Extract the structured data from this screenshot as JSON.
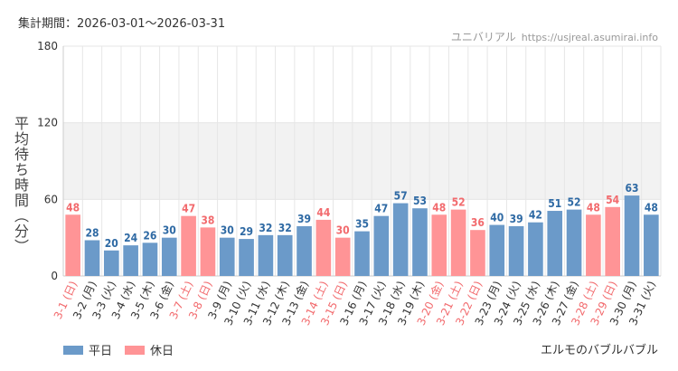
{
  "header": {
    "period_label": "集計期間：2026-03-01～2026-03-31",
    "site_name": "ユニバリアル",
    "site_url": "https://usjreal.asumirai.info"
  },
  "legend": {
    "weekday_label": "平日",
    "holiday_label": "休日"
  },
  "attraction_name": "エルモのバブルバブル",
  "colors": {
    "weekday": "#6b9ac9",
    "holiday": "#ff9496",
    "weekday_label": "#2f6aa4",
    "holiday_label": "#f26a6d",
    "band": "#f2f2f2",
    "grid": "#e6e6e6"
  },
  "chart_data": {
    "type": "bar",
    "title": "",
    "xlabel": "",
    "ylabel": "平均待ち時間（分）",
    "ylim": [
      0,
      180
    ],
    "yticks": [
      0,
      60,
      120,
      180
    ],
    "band": [
      60,
      120
    ],
    "categories": [
      "3-1 (日)",
      "3-2 (月)",
      "3-3 (火)",
      "3-4 (水)",
      "3-5 (木)",
      "3-6 (金)",
      "3-7 (土)",
      "3-8 (日)",
      "3-9 (月)",
      "3-10 (火)",
      "3-11 (水)",
      "3-12 (木)",
      "3-13 (金)",
      "3-14 (土)",
      "3-15 (日)",
      "3-16 (月)",
      "3-17 (火)",
      "3-18 (水)",
      "3-19 (木)",
      "3-20 (金)",
      "3-21 (土)",
      "3-22 (日)",
      "3-23 (月)",
      "3-24 (火)",
      "3-25 (水)",
      "3-26 (木)",
      "3-27 (金)",
      "3-28 (土)",
      "3-29 (日)",
      "3-30 (月)",
      "3-31 (火)"
    ],
    "values": [
      48,
      28,
      20,
      24,
      26,
      30,
      47,
      38,
      30,
      29,
      32,
      32,
      39,
      44,
      30,
      35,
      47,
      57,
      53,
      48,
      52,
      36,
      40,
      39,
      42,
      51,
      52,
      48,
      54,
      63,
      48
    ],
    "day_type": [
      "holiday",
      "weekday",
      "weekday",
      "weekday",
      "weekday",
      "weekday",
      "holiday",
      "holiday",
      "weekday",
      "weekday",
      "weekday",
      "weekday",
      "weekday",
      "holiday",
      "holiday",
      "weekday",
      "weekday",
      "weekday",
      "weekday",
      "holiday",
      "holiday",
      "holiday",
      "weekday",
      "weekday",
      "weekday",
      "weekday",
      "weekday",
      "holiday",
      "holiday",
      "weekday",
      "weekday"
    ],
    "series": [
      {
        "name": "平日"
      },
      {
        "name": "休日"
      }
    ]
  }
}
